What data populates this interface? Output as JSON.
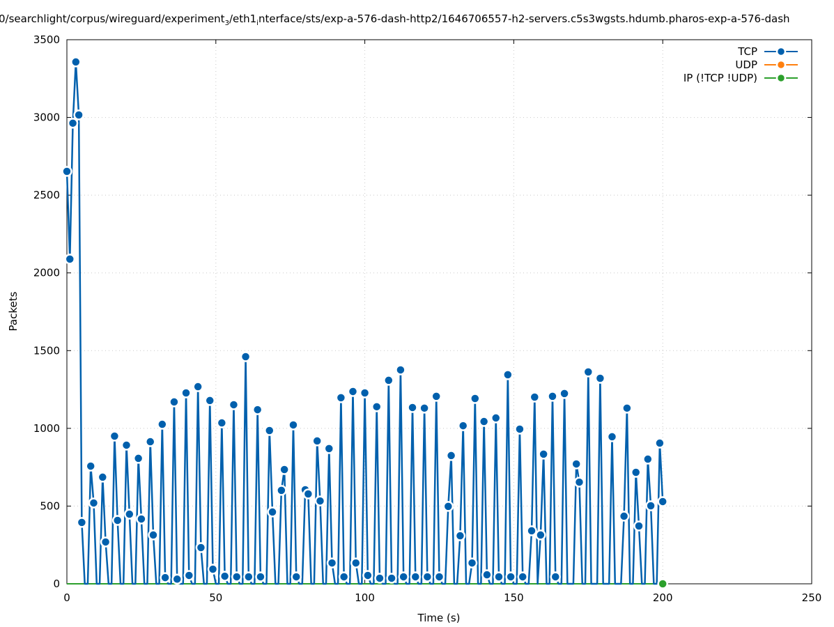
{
  "chart_data": {
    "type": "line",
    "title_parts": [
      "0/searchlight/corpus/wireguard/experiment",
      "3",
      "/eth1",
      "i",
      "nterface/sts/exp-a-576-dash-http2/1646706557-h2-servers.c5s3wgsts.hdumb.pharos-exp-a-576-dash"
    ],
    "xlabel": "Time (s)",
    "ylabel": "Packets",
    "xlim": [
      0,
      250
    ],
    "ylim": [
      0,
      3500
    ],
    "xticks": [
      0,
      50,
      100,
      150,
      200,
      250
    ],
    "yticks": [
      0,
      500,
      1000,
      1500,
      2000,
      2500,
      3000,
      3500
    ],
    "grid": true,
    "legend_position": "top-right",
    "series": [
      {
        "name": "TCP",
        "color": "#0060ad",
        "x_start": 0,
        "x_step": 1,
        "values": [
          2653,
          2089,
          2963,
          3357,
          3016,
          395,
          0,
          0,
          757,
          520,
          0,
          0,
          686,
          269,
          0,
          0,
          950,
          408,
          0,
          0,
          892,
          448,
          0,
          0,
          807,
          417,
          0,
          0,
          914,
          314,
          0,
          0,
          1026,
          40,
          0,
          0,
          1170,
          30,
          0,
          0,
          1228,
          54,
          0,
          0,
          1268,
          233,
          0,
          0,
          1179,
          94,
          0,
          0,
          1035,
          49,
          0,
          0,
          1152,
          45,
          0,
          0,
          1461,
          45,
          0,
          0,
          1120,
          45,
          0,
          0,
          986,
          462,
          0,
          0,
          601,
          735,
          0,
          0,
          1022,
          45,
          0,
          0,
          605,
          578,
          0,
          0,
          919,
          533,
          0,
          0,
          870,
          134,
          0,
          0,
          1197,
          45,
          0,
          0,
          1237,
          134,
          0,
          0,
          1228,
          54,
          0,
          0,
          1139,
          36,
          0,
          0,
          1309,
          36,
          0,
          0,
          1376,
          45,
          0,
          0,
          1134,
          45,
          0,
          0,
          1130,
          45,
          0,
          0,
          1206,
          45,
          0,
          0,
          498,
          825,
          0,
          0,
          309,
          1017,
          0,
          0,
          134,
          1192,
          0,
          0,
          1044,
          58,
          0,
          0,
          1067,
          45,
          0,
          0,
          1345,
          45,
          0,
          0,
          995,
          45,
          0,
          0,
          341,
          1201,
          0,
          314,
          834,
          0,
          0,
          1206,
          45,
          0,
          0,
          1224,
          0,
          0,
          0,
          771,
          654,
          0,
          0,
          1363,
          0,
          0,
          0,
          1322,
          0,
          0,
          0,
          946,
          0,
          0,
          0,
          435,
          1130,
          0,
          0,
          717,
          372,
          0,
          0,
          802,
          502,
          0,
          0,
          905,
          529
        ]
      },
      {
        "name": "UDP",
        "color": "#ff7f0e",
        "x_start": 0,
        "x_step": 1,
        "values": []
      },
      {
        "name": "IP (!TCP  !UDP)",
        "color": "#2ca02c",
        "x": [
          0,
          200
        ],
        "values": [
          0,
          0
        ]
      }
    ]
  }
}
